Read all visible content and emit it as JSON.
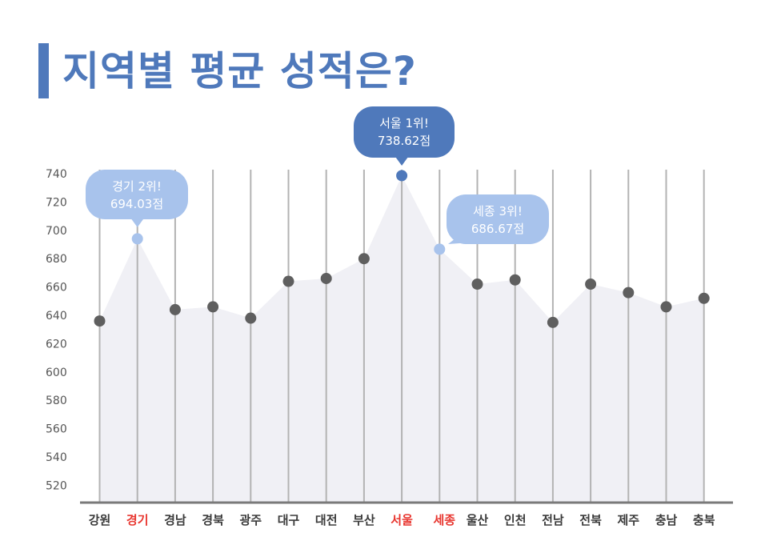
{
  "title": "지역별 평균 성적은?",
  "colors": {
    "title": "#4f79bb",
    "point": "#5f5f5f",
    "highlight_point_light": "#a8c3ec",
    "highlight_point_dark": "#4f79bb",
    "highlight_label": "#e8362f",
    "area": "#f0f0f5",
    "grid_line": "#b3b3b3"
  },
  "callouts": [
    {
      "category": "서울",
      "line1": "서울 1위!",
      "line2": "738.62점",
      "color": "#4f79bb"
    },
    {
      "category": "경기",
      "line1": "경기 2위!",
      "line2": "694.03점",
      "color": "#a8c3ec"
    },
    {
      "category": "세종",
      "line1": "세종 3위!",
      "line2": "686.67점",
      "color": "#a8c3ec"
    }
  ],
  "chart_data": {
    "type": "area",
    "categories": [
      "강원",
      "경기",
      "경남",
      "경북",
      "광주",
      "대구",
      "대전",
      "부산",
      "서울",
      "세종",
      "울산",
      "인천",
      "전남",
      "전북",
      "제주",
      "충남",
      "충북"
    ],
    "values": [
      636,
      694.03,
      644,
      646,
      638,
      664,
      666,
      680,
      738.62,
      686.67,
      662,
      665,
      635,
      662,
      656,
      646,
      652
    ],
    "highlight_categories": [
      "경기",
      "서울",
      "세종"
    ],
    "ylim": [
      510,
      740
    ],
    "yticks": [
      520,
      540,
      560,
      580,
      600,
      620,
      640,
      660,
      680,
      700,
      720,
      740
    ],
    "xlabel": "",
    "ylabel": "",
    "grid": "vertical"
  }
}
